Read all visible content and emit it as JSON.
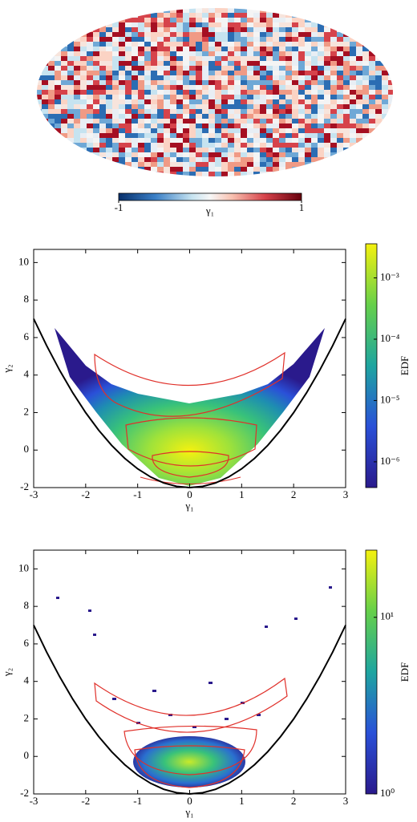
{
  "chart_data": [
    {
      "type": "map",
      "colorbar": {
        "label": "γ₁",
        "clim": [
          -1,
          1
        ],
        "ticks": [
          -1,
          1
        ]
      }
    },
    {
      "type": "heatmap",
      "xlabel": "γ₁",
      "ylabel": "γ₂",
      "xlim": [
        -3,
        3
      ],
      "ylim": [
        -2,
        10.7
      ],
      "xticks": [
        -3,
        -2,
        -1,
        0,
        1,
        2,
        3
      ],
      "yticks": [
        -2,
        0,
        2,
        4,
        6,
        8,
        10
      ],
      "x": [
        -3,
        -2.75,
        -2.5,
        -2.25,
        -2,
        -1.75,
        -1.5,
        -1.25,
        -1,
        -0.75,
        -0.5,
        -0.25,
        0,
        0.25,
        0.5,
        0.75,
        1,
        1.25,
        1.5,
        1.75,
        2,
        2.25,
        2.5,
        2.75,
        3
      ],
      "series": [
        {
          "color": "#000000",
          "values": [
            7,
            5.5625,
            4.25,
            3.0625,
            2,
            1.0625,
            0.25,
            -0.4375,
            -1,
            -1.4375,
            -1.75,
            -1.9375,
            -2,
            -1.9375,
            -1.75,
            -1.4375,
            -1,
            -0.4375,
            0.25,
            1.0625,
            2,
            3.0625,
            4.25,
            5.5625,
            7
          ]
        }
      ],
      "colorbar": {
        "label": "EDF",
        "log": true,
        "clim": [
          3.8e-07,
          0.0036
        ],
        "ticks": [
          {
            "value": 0.001,
            "label": "10⁻³"
          },
          {
            "value": 0.0001,
            "label": "10⁻⁴"
          },
          {
            "value": 1e-05,
            "label": "10⁻⁵"
          },
          {
            "value": 1e-06,
            "label": "10⁻⁶"
          }
        ]
      }
    },
    {
      "type": "heatmap",
      "xlabel": "γ₁",
      "ylabel": "γ₂",
      "xlim": [
        -3,
        3
      ],
      "ylim": [
        -2,
        11
      ],
      "xticks": [
        -3,
        -2,
        -1,
        0,
        1,
        2,
        3
      ],
      "yticks": [
        -2,
        0,
        2,
        4,
        6,
        8,
        10
      ],
      "x": [
        -3,
        -2.75,
        -2.5,
        -2.25,
        -2,
        -1.75,
        -1.5,
        -1.25,
        -1,
        -0.75,
        -0.5,
        -0.25,
        0,
        0.25,
        0.5,
        0.75,
        1,
        1.25,
        1.5,
        1.75,
        2,
        2.25,
        2.5,
        2.75,
        3
      ],
      "series": [
        {
          "color": "#000000",
          "values": [
            7,
            5.5625,
            4.25,
            3.0625,
            2,
            1.0625,
            0.25,
            -0.4375,
            -1,
            -1.4375,
            -1.75,
            -1.9375,
            -2,
            -1.9375,
            -1.75,
            -1.4375,
            -1,
            -0.4375,
            0.25,
            1.0625,
            2,
            3.0625,
            4.25,
            5.5625,
            7
          ]
        }
      ],
      "colorbar": {
        "label": "EDF",
        "log": true,
        "clim": [
          1,
          24
        ],
        "ticks": [
          {
            "value": 10,
            "label": "10¹"
          },
          {
            "value": 1,
            "label": "10⁰"
          }
        ]
      }
    }
  ]
}
